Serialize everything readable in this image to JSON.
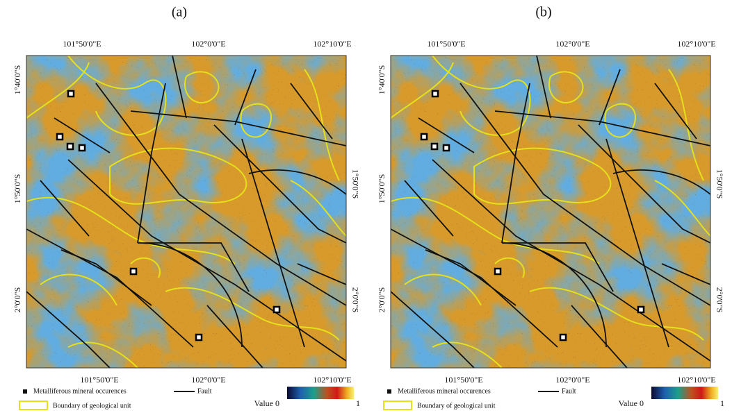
{
  "panels": [
    {
      "label": "(a)",
      "top_labels": [
        "101°50'0\"E",
        "102°0'0\"E",
        "102°10'0\"E"
      ],
      "bottom_labels": [
        "101°50'0\"E",
        "102°0'0\"E",
        "102°10'0\"E"
      ],
      "left_labels": [
        "1°40'0\"S",
        "1°50'0\"S",
        "2°0'0\"S"
      ],
      "right_labels": [
        "1°50'0\"S",
        "2°0'0\"S"
      ],
      "legend": {
        "occurrence": "Metalliferous mineral occurences",
        "fault": "Fault",
        "boundary": "Boundary of geological unit",
        "value_min": "Value 0",
        "value_max": "1"
      }
    },
    {
      "label": "(b)",
      "top_labels": [
        "101°50'0\"E",
        "102°0'0\"E",
        "102°10'0\"E"
      ],
      "bottom_labels": [
        "101°50'0\"E",
        "102°0'0\"E",
        "102°10'0\"E"
      ],
      "left_labels": [
        "1°40'0\"S",
        "1°50'0\"S",
        "2°0'0\"S"
      ],
      "right_labels": [
        "1°50'0\"S",
        "2°0'0\"S"
      ],
      "legend": {
        "occurrence": "Metalliferous mineral occurences",
        "fault": "Fault",
        "boundary": "Boundary of geological unit",
        "value_min": "Value 0",
        "value_max": "1"
      }
    }
  ]
}
